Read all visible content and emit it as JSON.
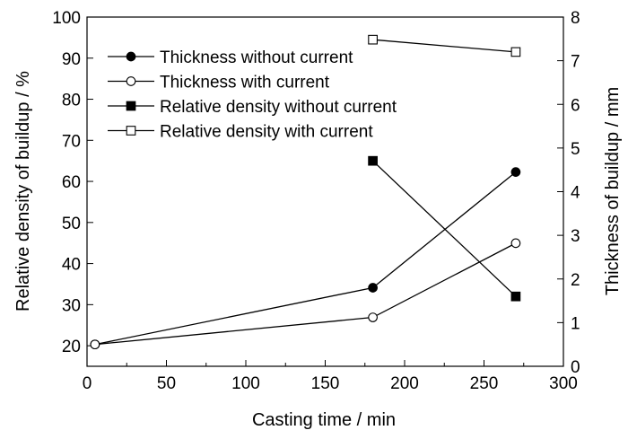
{
  "chart_data": {
    "type": "line",
    "title": "",
    "xlabel": "Casting time / min",
    "ylabel_left": "Relative density of buildup / %",
    "ylabel_right": "Thickness of buildup / mm",
    "xlim": [
      0,
      300
    ],
    "ylim_left": [
      15,
      100
    ],
    "ylim_right": [
      0,
      8
    ],
    "x_ticks": [
      "0",
      "50",
      "100",
      "150",
      "200",
      "250",
      "300"
    ],
    "y_left_ticks": [
      "20",
      "30",
      "40",
      "50",
      "60",
      "70",
      "80",
      "90",
      "100"
    ],
    "y_right_ticks": [
      "0",
      "1",
      "2",
      "3",
      "4",
      "5",
      "6",
      "7",
      "8"
    ],
    "grid": false,
    "legend_position": "top-left",
    "series": [
      {
        "name": "Thickness without current",
        "axis": "right",
        "marker": "filled-circle",
        "x": [
          5,
          180,
          270
        ],
        "y": [
          0.5,
          1.8,
          4.45
        ]
      },
      {
        "name": "Thickness with current",
        "axis": "right",
        "marker": "open-circle",
        "x": [
          5,
          180,
          270
        ],
        "y": [
          0.5,
          1.12,
          2.82
        ]
      },
      {
        "name": "Relative density without current",
        "axis": "left",
        "marker": "filled-square",
        "x": [
          180,
          270
        ],
        "y": [
          65,
          32
        ]
      },
      {
        "name": "Relative density with current",
        "axis": "left",
        "marker": "open-square",
        "x": [
          180,
          270
        ],
        "y": [
          94.5,
          91.5
        ]
      }
    ]
  }
}
